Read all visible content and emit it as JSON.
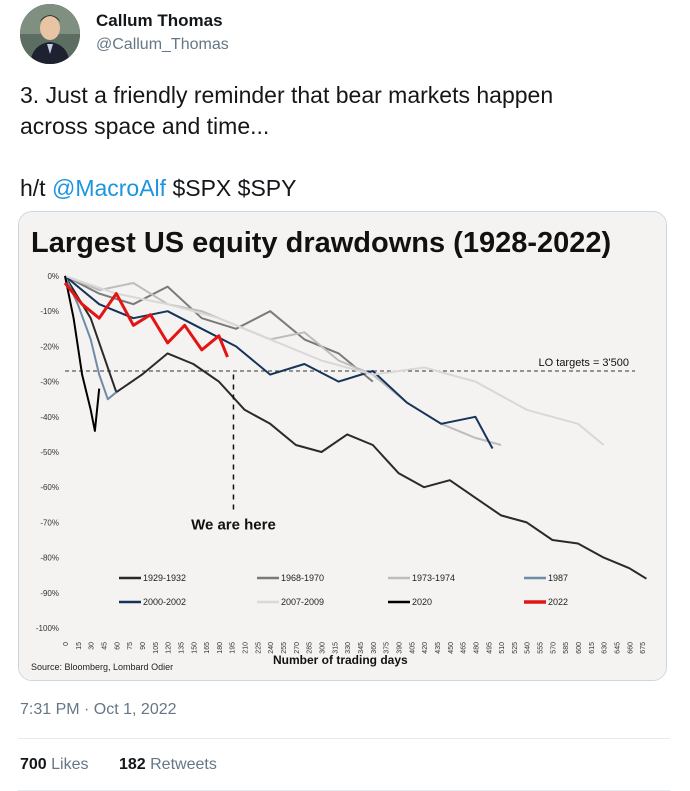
{
  "user": {
    "display_name": "Callum Thomas",
    "handle": "@Callum_Thomas",
    "avatar_icon": "profile-photo"
  },
  "tweet": {
    "text_line1": "3. Just a friendly reminder that bear markets happen",
    "text_line2": "across space and time...",
    "hat_tip": "h/t ",
    "mention": "@MacroAlf",
    "tickers": " $SPX $SPY",
    "timestamp": "7:31 PM · Oct 1, 2022"
  },
  "stats": {
    "likes_count": "700",
    "likes_label": "Likes",
    "retweets_count": "182",
    "retweets_label": "Retweets"
  },
  "chart_data": {
    "type": "line",
    "title": "Largest US equity drawdowns (1928-2022)",
    "xlabel": "Number of trading days",
    "ylabel": "",
    "source": "Source: Bloomberg, Lombard Odier",
    "xlim": [
      0,
      690
    ],
    "ylim": [
      -100,
      0
    ],
    "y_ticks": [
      "0%",
      "-10%",
      "-20%",
      "-30%",
      "-40%",
      "-50%",
      "-60%",
      "-70%",
      "-80%",
      "-90%",
      "-100%"
    ],
    "x_ticks": [
      "0",
      "15",
      "30",
      "45",
      "60",
      "75",
      "90",
      "105",
      "120",
      "135",
      "150",
      "165",
      "180",
      "195",
      "210",
      "225",
      "240",
      "255",
      "270",
      "285",
      "300",
      "315",
      "330",
      "345",
      "360",
      "375",
      "390",
      "405",
      "420",
      "435",
      "450",
      "465",
      "480",
      "495",
      "510",
      "525",
      "540",
      "555",
      "570",
      "585",
      "600",
      "615",
      "630",
      "645",
      "660",
      "675"
    ],
    "reference_line": {
      "y": -27,
      "label": "LO targets = 3'500"
    },
    "annotation": "We are here",
    "series": [
      {
        "name": "1929-1932",
        "color": "#2a2a2a",
        "x": [
          0,
          30,
          60,
          90,
          120,
          150,
          180,
          210,
          240,
          270,
          300,
          330,
          360,
          390,
          420,
          450,
          480,
          510,
          540,
          570,
          600,
          630,
          660,
          680
        ],
        "values": [
          0,
          -12,
          -33,
          -28,
          -22,
          -25,
          -30,
          -38,
          -42,
          -48,
          -50,
          -45,
          -48,
          -56,
          -60,
          -58,
          -63,
          -68,
          -70,
          -75,
          -76,
          -80,
          -83,
          -86
        ]
      },
      {
        "name": "1968-1970",
        "color": "#7a7a7a",
        "x": [
          0,
          40,
          80,
          120,
          160,
          200,
          240,
          280,
          320,
          360
        ],
        "values": [
          0,
          -5,
          -8,
          -3,
          -12,
          -15,
          -10,
          -18,
          -22,
          -30
        ]
      },
      {
        "name": "1973-1974",
        "color": "#bdbdbd",
        "x": [
          0,
          40,
          80,
          120,
          160,
          200,
          240,
          280,
          320,
          360,
          400,
          440,
          480,
          510
        ],
        "values": [
          0,
          -4,
          -2,
          -8,
          -10,
          -14,
          -18,
          -16,
          -24,
          -28,
          -36,
          -42,
          -46,
          -48
        ]
      },
      {
        "name": "1987",
        "color": "#6e8ba8",
        "x": [
          0,
          15,
          30,
          40,
          50,
          60
        ],
        "values": [
          0,
          -8,
          -18,
          -28,
          -35,
          -33
        ]
      },
      {
        "name": "2000-2002",
        "color": "#16335a",
        "x": [
          0,
          40,
          80,
          120,
          160,
          200,
          240,
          280,
          320,
          360,
          400,
          440,
          480,
          500
        ],
        "values": [
          0,
          -8,
          -12,
          -10,
          -15,
          -20,
          -28,
          -25,
          -30,
          -27,
          -36,
          -42,
          -40,
          -49
        ]
      },
      {
        "name": "2007-2009",
        "color": "#d8d8d8",
        "x": [
          0,
          60,
          120,
          180,
          240,
          300,
          360,
          420,
          480,
          540,
          600,
          630
        ],
        "values": [
          0,
          -5,
          -8,
          -12,
          -18,
          -24,
          -28,
          -26,
          -30,
          -38,
          -42,
          -48
        ]
      },
      {
        "name": "2020",
        "color": "#000000",
        "x": [
          0,
          10,
          20,
          30,
          35,
          40
        ],
        "values": [
          0,
          -12,
          -28,
          -38,
          -44,
          -32
        ]
      },
      {
        "name": "2022",
        "color": "#e31414",
        "x": [
          0,
          20,
          40,
          60,
          80,
          100,
          120,
          140,
          160,
          180,
          190
        ],
        "values": [
          -2,
          -8,
          -12,
          -5,
          -14,
          -11,
          -19,
          -14,
          -21,
          -17,
          -23
        ]
      }
    ]
  }
}
